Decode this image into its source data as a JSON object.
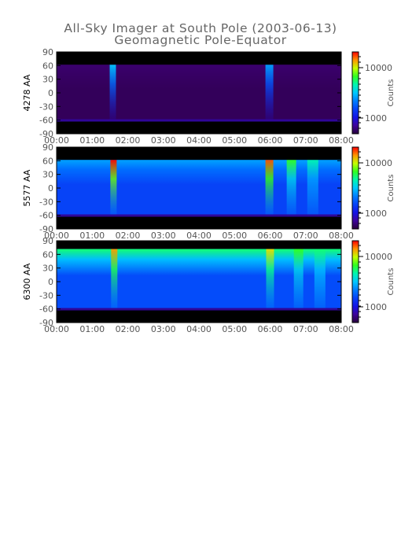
{
  "title": "All-Sky Imager at South Pole (2003-06-13)",
  "subtitle": "Geomagnetic Pole-Equator",
  "colors": {
    "axis": "#000000",
    "tick_label": "#555555",
    "title": "#666666",
    "night_band": "#000000"
  },
  "chart_data": [
    {
      "type": "heatmap",
      "ylabel": "4278 AA",
      "colorbar_label": "Counts",
      "colorbar_ticks": [
        "10000",
        "1000"
      ],
      "x_ticks": [
        "00:00",
        "01:00",
        "02:00",
        "03:00",
        "04:00",
        "05:00",
        "06:00",
        "07:00",
        "08:00"
      ],
      "y_ticks": [
        "90",
        "60",
        "30",
        "0",
        "-30",
        "-60",
        "-90"
      ],
      "xlim": [
        "00:00",
        "08:00"
      ],
      "ylim": [
        -90,
        90
      ],
      "base_level": 0.03,
      "band_level": 0.05,
      "black_top": 62,
      "black_bottom": -58,
      "features": [
        {
          "t": 1.58,
          "level": 0.5
        },
        {
          "t": 5.98,
          "level": 0.45
        }
      ]
    },
    {
      "type": "heatmap",
      "ylabel": "5577 AA",
      "colorbar_label": "Counts",
      "colorbar_ticks": [
        "10000",
        "1000"
      ],
      "x_ticks": [
        "00:00",
        "01:00",
        "02:00",
        "03:00",
        "04:00",
        "05:00",
        "06:00",
        "07:00",
        "08:00"
      ],
      "y_ticks": [
        "90",
        "60",
        "30",
        "0",
        "-30",
        "-60",
        "-90"
      ],
      "xlim": [
        "00:00",
        "08:00"
      ],
      "ylim": [
        -90,
        90
      ],
      "base_level": 0.3,
      "band_level": 0.45,
      "black_top": 62,
      "black_bottom": -58,
      "features": [
        {
          "t": 1.6,
          "level": 1.0
        },
        {
          "t": 5.98,
          "level": 0.95
        },
        {
          "t": 6.6,
          "level": 0.7
        },
        {
          "t": 7.2,
          "level": 0.6
        }
      ]
    },
    {
      "type": "heatmap",
      "ylabel": "6300 AA",
      "colorbar_label": "Counts",
      "colorbar_ticks": [
        "10000",
        "1000"
      ],
      "x_ticks": [
        "00:00",
        "01:00",
        "02:00",
        "03:00",
        "04:00",
        "05:00",
        "06:00",
        "07:00",
        "08:00"
      ],
      "y_ticks": [
        "90",
        "60",
        "30",
        "0",
        "-30",
        "-60",
        "-90"
      ],
      "xlim": [
        "00:00",
        "08:00"
      ],
      "ylim": [
        -90,
        90
      ],
      "base_level": 0.32,
      "band_level": 0.65,
      "black_top": 72,
      "black_bottom": -58,
      "features": [
        {
          "t": 1.62,
          "level": 0.9
        },
        {
          "t": 6.0,
          "level": 0.85
        },
        {
          "t": 6.8,
          "level": 0.7
        },
        {
          "t": 7.4,
          "level": 0.65
        }
      ]
    }
  ]
}
